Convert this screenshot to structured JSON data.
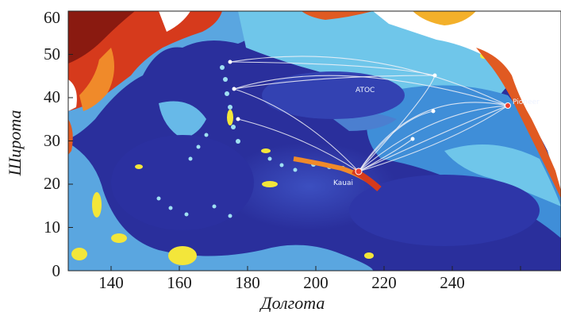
{
  "axes": {
    "xlabel": "Долгота",
    "ylabel": "Широта",
    "xticks": [
      "140",
      "160",
      "180",
      "200",
      "220",
      "240"
    ],
    "yticks": [
      "0",
      "10",
      "20",
      "30",
      "40",
      "50",
      "60"
    ]
  },
  "labels": {
    "atoc": "ATOC",
    "pioneer": "Pioneer",
    "kauai": "Kauai"
  },
  "colors": {
    "deep_ocean": "#2a2f9c",
    "ocean_mid": "#3f63c8",
    "shelf": "#6fc6ea",
    "shallow": "#f3e63a",
    "land_hot": "#d63a1c",
    "land_cool": "#ffffff",
    "routes": "#f2f2f8"
  }
}
